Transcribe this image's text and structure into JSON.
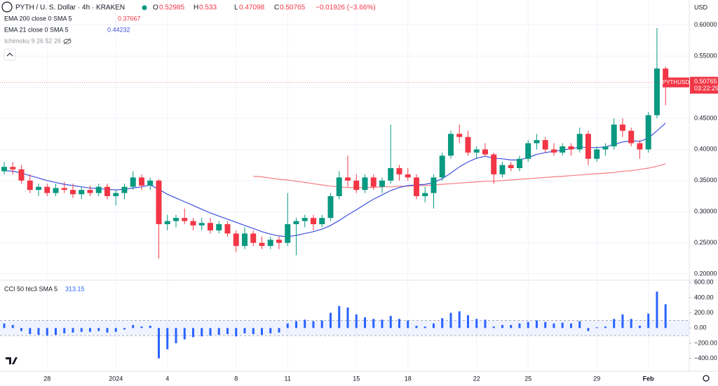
{
  "chart_data": [
    {
      "type": "candlestick",
      "title": "PYTH / U. S. Dollar · 4h · KRAKEN",
      "currency": "USD",
      "symbol": "PYTHUSD",
      "countdown": "03:22:29",
      "ohlc_labels": [
        "O",
        "H",
        "L",
        "C"
      ],
      "change_label": "−0.01926 (−3.66%)",
      "hidden_indicator": "Ichimoku 9 26 52 26",
      "up_color": "#089981",
      "down_color": "#f23645",
      "grid": true,
      "xlim": [
        -0.49,
        79.76
      ],
      "ylim": [
        0.19,
        0.64
      ],
      "xticks": [
        {
          "value": 5,
          "label": "28"
        },
        {
          "value": 13,
          "label": "2024"
        },
        {
          "value": 19,
          "label": "4"
        },
        {
          "value": 27,
          "label": "8"
        },
        {
          "value": 33,
          "label": "11"
        },
        {
          "value": 41,
          "label": "15"
        },
        {
          "value": 47,
          "label": "18"
        },
        {
          "value": 55,
          "label": "22"
        },
        {
          "value": 61,
          "label": "25"
        },
        {
          "value": 69,
          "label": "29"
        },
        {
          "value": 75,
          "label": "Feb"
        }
      ],
      "yticks": [
        {
          "value": 0.6,
          "label": "0.60000"
        },
        {
          "value": 0.55,
          "label": "0.55000"
        },
        {
          "value": 0.5,
          "label": "0.50000"
        },
        {
          "value": 0.45,
          "label": "0.45000"
        },
        {
          "value": 0.4,
          "label": "0.40000"
        },
        {
          "value": 0.35,
          "label": "0.35000"
        },
        {
          "value": 0.3,
          "label": "0.30000"
        },
        {
          "value": 0.25,
          "label": "0.25000"
        },
        {
          "value": 0.2,
          "label": "0.20000"
        }
      ],
      "ohlc": [
        [
          0.365,
          0.38,
          0.36,
          0.372
        ],
        [
          0.372,
          0.38,
          0.36,
          0.368
        ],
        [
          0.368,
          0.375,
          0.345,
          0.35
        ],
        [
          0.35,
          0.36,
          0.33,
          0.335
        ],
        [
          0.335,
          0.345,
          0.325,
          0.34
        ],
        [
          0.34,
          0.345,
          0.325,
          0.33
        ],
        [
          0.33,
          0.345,
          0.325,
          0.338
        ],
        [
          0.338,
          0.348,
          0.33,
          0.335
        ],
        [
          0.335,
          0.345,
          0.322,
          0.328
        ],
        [
          0.328,
          0.34,
          0.32,
          0.335
        ],
        [
          0.335,
          0.342,
          0.325,
          0.33
        ],
        [
          0.33,
          0.345,
          0.325,
          0.34
        ],
        [
          0.34,
          0.345,
          0.32,
          0.325
        ],
        [
          0.325,
          0.335,
          0.31,
          0.33
        ],
        [
          0.33,
          0.345,
          0.32,
          0.34
        ],
        [
          0.34,
          0.365,
          0.335,
          0.355
        ],
        [
          0.355,
          0.36,
          0.335,
          0.342
        ],
        [
          0.342,
          0.355,
          0.335,
          0.35
        ],
        [
          0.35,
          0.352,
          0.225,
          0.28
        ],
        [
          0.28,
          0.295,
          0.27,
          0.285
        ],
        [
          0.285,
          0.295,
          0.275,
          0.29
        ],
        [
          0.29,
          0.305,
          0.28,
          0.285
        ],
        [
          0.285,
          0.29,
          0.27,
          0.278
        ],
        [
          0.278,
          0.29,
          0.27,
          0.282
        ],
        [
          0.282,
          0.29,
          0.265,
          0.27
        ],
        [
          0.27,
          0.285,
          0.265,
          0.28
        ],
        [
          0.28,
          0.285,
          0.26,
          0.265
        ],
        [
          0.265,
          0.27,
          0.235,
          0.245
        ],
        [
          0.245,
          0.275,
          0.24,
          0.265
        ],
        [
          0.265,
          0.27,
          0.245,
          0.25
        ],
        [
          0.25,
          0.26,
          0.24,
          0.245
        ],
        [
          0.245,
          0.26,
          0.24,
          0.255
        ],
        [
          0.255,
          0.26,
          0.24,
          0.25
        ],
        [
          0.25,
          0.33,
          0.245,
          0.28
        ],
        [
          0.28,
          0.29,
          0.23,
          0.285
        ],
        [
          0.285,
          0.295,
          0.275,
          0.29
        ],
        [
          0.29,
          0.295,
          0.27,
          0.28
        ],
        [
          0.28,
          0.295,
          0.275,
          0.29
        ],
        [
          0.29,
          0.33,
          0.285,
          0.325
        ],
        [
          0.325,
          0.365,
          0.32,
          0.355
        ],
        [
          0.355,
          0.39,
          0.34,
          0.35
        ],
        [
          0.35,
          0.36,
          0.33,
          0.335
        ],
        [
          0.335,
          0.36,
          0.33,
          0.355
        ],
        [
          0.355,
          0.36,
          0.335,
          0.34
        ],
        [
          0.34,
          0.355,
          0.33,
          0.35
        ],
        [
          0.35,
          0.44,
          0.345,
          0.37
        ],
        [
          0.37,
          0.375,
          0.35,
          0.36
        ],
        [
          0.36,
          0.37,
          0.35,
          0.355
        ],
        [
          0.355,
          0.36,
          0.32,
          0.325
        ],
        [
          0.325,
          0.34,
          0.315,
          0.33
        ],
        [
          0.33,
          0.36,
          0.305,
          0.355
        ],
        [
          0.355,
          0.395,
          0.35,
          0.39
        ],
        [
          0.39,
          0.43,
          0.385,
          0.425
        ],
        [
          0.425,
          0.44,
          0.41,
          0.42
        ],
        [
          0.42,
          0.43,
          0.39,
          0.395
        ],
        [
          0.395,
          0.405,
          0.385,
          0.4
        ],
        [
          0.4,
          0.41,
          0.39,
          0.392
        ],
        [
          0.392,
          0.395,
          0.345,
          0.36
        ],
        [
          0.36,
          0.38,
          0.355,
          0.375
        ],
        [
          0.375,
          0.38,
          0.365,
          0.37
        ],
        [
          0.37,
          0.39,
          0.365,
          0.385
        ],
        [
          0.385,
          0.415,
          0.38,
          0.41
        ],
        [
          0.41,
          0.425,
          0.4,
          0.415
        ],
        [
          0.415,
          0.42,
          0.395,
          0.4
        ],
        [
          0.4,
          0.41,
          0.39,
          0.395
        ],
        [
          0.395,
          0.41,
          0.39,
          0.405
        ],
        [
          0.405,
          0.41,
          0.39,
          0.4
        ],
        [
          0.4,
          0.435,
          0.395,
          0.425
        ],
        [
          0.425,
          0.43,
          0.375,
          0.385
        ],
        [
          0.385,
          0.405,
          0.38,
          0.4
        ],
        [
          0.4,
          0.41,
          0.39,
          0.405
        ],
        [
          0.405,
          0.45,
          0.4,
          0.44
        ],
        [
          0.44,
          0.45,
          0.42,
          0.43
        ],
        [
          0.43,
          0.435,
          0.405,
          0.41
        ],
        [
          0.41,
          0.415,
          0.385,
          0.4
        ],
        [
          0.4,
          0.46,
          0.395,
          0.455
        ],
        [
          0.455,
          0.595,
          0.45,
          0.53
        ],
        [
          0.52985,
          0.533,
          0.47098,
          0.50765
        ]
      ],
      "series": [
        {
          "name": "EMA 200 close 0 SMA 5",
          "color": "#f77c80",
          "values": [
            null,
            null,
            null,
            null,
            null,
            null,
            null,
            null,
            null,
            null,
            null,
            null,
            null,
            null,
            null,
            null,
            null,
            null,
            null,
            null,
            null,
            null,
            null,
            null,
            null,
            null,
            null,
            null,
            null,
            0.357,
            0.356,
            0.354,
            0.352,
            0.351,
            0.349,
            0.347,
            0.345,
            0.343,
            0.341,
            0.34,
            0.339,
            0.339,
            0.339,
            0.339,
            0.34,
            0.34,
            0.341,
            0.341,
            0.342,
            0.342,
            0.343,
            0.344,
            0.345,
            0.346,
            0.347,
            0.348,
            0.349,
            0.349,
            0.35,
            0.351,
            0.352,
            0.353,
            0.354,
            0.355,
            0.356,
            0.357,
            0.358,
            0.359,
            0.36,
            0.361,
            0.362,
            0.363,
            0.365,
            0.366,
            0.368,
            0.37,
            0.373,
            0.37667
          ]
        },
        {
          "name": "EMA 21 close 0 SMA 5",
          "color": "#3d4fe0",
          "values": [
            0.366,
            0.365,
            0.362,
            0.358,
            0.354,
            0.35,
            0.347,
            0.344,
            0.342,
            0.34,
            0.338,
            0.337,
            0.336,
            0.335,
            0.336,
            0.338,
            0.34,
            0.343,
            0.336,
            0.328,
            0.322,
            0.316,
            0.31,
            0.304,
            0.298,
            0.293,
            0.288,
            0.283,
            0.278,
            0.273,
            0.268,
            0.264,
            0.261,
            0.26,
            0.262,
            0.265,
            0.268,
            0.272,
            0.278,
            0.286,
            0.295,
            0.303,
            0.312,
            0.32,
            0.327,
            0.334,
            0.339,
            0.342,
            0.343,
            0.344,
            0.347,
            0.353,
            0.362,
            0.372,
            0.38,
            0.386,
            0.389,
            0.386,
            0.385,
            0.383,
            0.383,
            0.387,
            0.392,
            0.395,
            0.397,
            0.399,
            0.401,
            0.404,
            0.403,
            0.403,
            0.404,
            0.408,
            0.412,
            0.414,
            0.413,
            0.418,
            0.43,
            0.44232
          ]
        }
      ]
    },
    {
      "type": "bar",
      "title": "CCI 50 hlc3 SMA 5",
      "color": "#2962ff",
      "bands": [
        -100,
        100
      ],
      "grid": true,
      "xlim": [
        -0.49,
        79.76
      ],
      "ylim": [
        -570,
        630
      ],
      "yticks": [
        {
          "value": 600,
          "label": "600.00"
        },
        {
          "value": 400,
          "label": "400.00"
        },
        {
          "value": 200,
          "label": "200.00"
        },
        {
          "value": 0,
          "label": "0.00"
        },
        {
          "value": -200,
          "label": "−200.00"
        },
        {
          "value": -400,
          "label": "−400.00"
        }
      ],
      "values": [
        60,
        40,
        -40,
        -80,
        -90,
        -100,
        -90,
        -70,
        -60,
        -50,
        -50,
        -40,
        -60,
        -50,
        -20,
        40,
        20,
        30,
        -400,
        -280,
        -200,
        -150,
        -120,
        -110,
        -100,
        -90,
        -80,
        -110,
        -70,
        -80,
        -90,
        -70,
        -60,
        60,
        90,
        110,
        90,
        100,
        200,
        290,
        270,
        180,
        140,
        120,
        110,
        160,
        120,
        100,
        30,
        20,
        60,
        130,
        200,
        220,
        170,
        120,
        110,
        20,
        40,
        40,
        60,
        80,
        100,
        80,
        60,
        70,
        60,
        90,
        -40,
        10,
        20,
        120,
        180,
        120,
        30,
        190,
        480,
        313.15
      ]
    }
  ]
}
